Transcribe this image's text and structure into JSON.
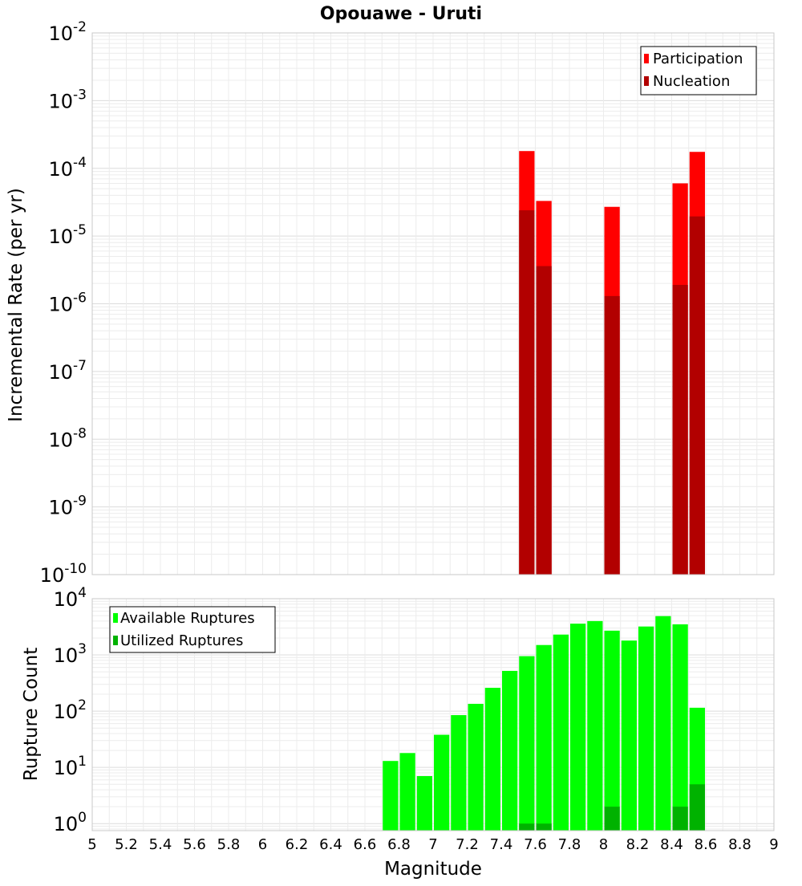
{
  "chart_data": [
    {
      "type": "bar",
      "title": "Opouawe - Uruti",
      "xlabel": "",
      "ylabel": "Incremental Rate (per yr)",
      "yscale": "log",
      "xlim": [
        5,
        9
      ],
      "ylim": [
        1e-10,
        0.01
      ],
      "grid": true,
      "legend_position": "top-right",
      "bin_width": 0.1,
      "y_tick_exponents": [
        "-10",
        "-9",
        "-8",
        "-7",
        "-6",
        "-5",
        "-4",
        "-3",
        "-2"
      ],
      "series": [
        {
          "name": "Participation",
          "color": "#ff0000",
          "x": [
            7.55,
            7.65,
            8.05,
            8.45,
            8.55
          ],
          "values": [
            0.00018,
            3.3e-05,
            2.7e-05,
            6e-05,
            0.000175
          ]
        },
        {
          "name": "Nucleation",
          "color": "#b20000",
          "x": [
            7.55,
            7.65,
            8.05,
            8.45,
            8.55
          ],
          "values": [
            2.4e-05,
            3.6e-06,
            1.3e-06,
            1.9e-06,
            1.95e-05
          ]
        }
      ]
    },
    {
      "type": "bar",
      "title": "",
      "xlabel": "Magnitude",
      "ylabel": "Rupture Count",
      "yscale": "log",
      "xlim": [
        5,
        9
      ],
      "ylim": [
        0.75,
        10000
      ],
      "grid": true,
      "legend_position": "top-left",
      "bin_width": 0.1,
      "x_ticks": [
        "5",
        "5.2",
        "5.4",
        "5.6",
        "5.8",
        "6",
        "6.2",
        "6.4",
        "6.6",
        "6.8",
        "7",
        "7.2",
        "7.4",
        "7.6",
        "7.8",
        "8",
        "8.2",
        "8.4",
        "8.6",
        "8.8",
        "9"
      ],
      "y_tick_exponents": [
        "0",
        "1",
        "2",
        "3",
        "4"
      ],
      "series": [
        {
          "name": "Available Ruptures",
          "color": "#00ff00",
          "x": [
            6.75,
            6.85,
            6.95,
            7.05,
            7.15,
            7.25,
            7.35,
            7.45,
            7.55,
            7.65,
            7.75,
            7.85,
            7.95,
            8.05,
            8.15,
            8.25,
            8.35,
            8.45,
            8.55
          ],
          "values": [
            13,
            18,
            7,
            38,
            85,
            135,
            260,
            520,
            950,
            1500,
            2300,
            3600,
            4000,
            2700,
            1800,
            3200,
            4900,
            3500,
            115
          ]
        },
        {
          "name": "Utilized Ruptures",
          "color": "#00b200",
          "x": [
            7.55,
            7.65,
            8.05,
            8.45,
            8.55
          ],
          "values": [
            1,
            1,
            2,
            2,
            5
          ]
        }
      ]
    }
  ]
}
